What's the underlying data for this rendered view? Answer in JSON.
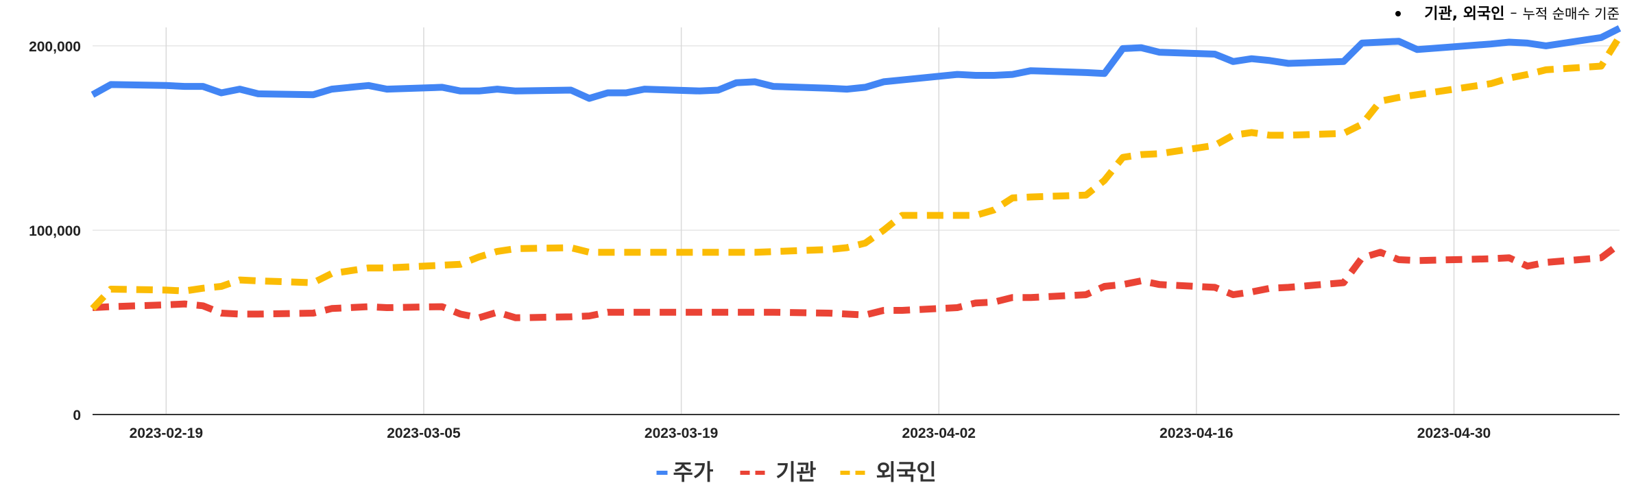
{
  "annotation": {
    "bold_text": "기관, 외국인",
    "dash": "–",
    "detail": "누적 순매수 기준"
  },
  "chart_data": {
    "type": "line",
    "x_ticks": [
      "2023-02-19",
      "2023-03-05",
      "2023-03-19",
      "2023-04-02",
      "2023-04-16",
      "2023-04-30"
    ],
    "x_range": [
      "2023-02-15",
      "2023-05-09"
    ],
    "y_ticks": [
      "0",
      "100,000",
      "200,000"
    ],
    "ylim": [
      0,
      210000
    ],
    "grid": true,
    "legend_position": "bottom",
    "series": [
      {
        "name": "주가",
        "color": "#4285f4",
        "style": "solid",
        "points": [
          [
            "2023-02-15",
            173500
          ],
          [
            "2023-02-16",
            179000
          ],
          [
            "2023-02-19",
            178500
          ],
          [
            "2023-02-20",
            178000
          ],
          [
            "2023-02-21",
            178000
          ],
          [
            "2023-02-22",
            174500
          ],
          [
            "2023-02-23",
            176500
          ],
          [
            "2023-02-24",
            174000
          ],
          [
            "2023-02-27",
            173500
          ],
          [
            "2023-02-28",
            176500
          ],
          [
            "2023-03-02",
            178500
          ],
          [
            "2023-03-03",
            176500
          ],
          [
            "2023-03-06",
            177500
          ],
          [
            "2023-03-07",
            175500
          ],
          [
            "2023-03-08",
            175500
          ],
          [
            "2023-03-09",
            176500
          ],
          [
            "2023-03-10",
            175500
          ],
          [
            "2023-03-13",
            176000
          ],
          [
            "2023-03-14",
            171500
          ],
          [
            "2023-03-15",
            174500
          ],
          [
            "2023-03-16",
            174500
          ],
          [
            "2023-03-17",
            176500
          ],
          [
            "2023-03-20",
            175500
          ],
          [
            "2023-03-21",
            176000
          ],
          [
            "2023-03-22",
            180000
          ],
          [
            "2023-03-23",
            180500
          ],
          [
            "2023-03-24",
            178000
          ],
          [
            "2023-03-27",
            177000
          ],
          [
            "2023-03-28",
            176500
          ],
          [
            "2023-03-29",
            177500
          ],
          [
            "2023-03-30",
            180500
          ],
          [
            "2023-03-31",
            181500
          ],
          [
            "2023-04-03",
            184500
          ],
          [
            "2023-04-04",
            184000
          ],
          [
            "2023-04-05",
            184000
          ],
          [
            "2023-04-06",
            184500
          ],
          [
            "2023-04-07",
            186500
          ],
          [
            "2023-04-10",
            185500
          ],
          [
            "2023-04-11",
            185000
          ],
          [
            "2023-04-12",
            198500
          ],
          [
            "2023-04-13",
            199000
          ],
          [
            "2023-04-14",
            196500
          ],
          [
            "2023-04-17",
            195500
          ],
          [
            "2023-04-18",
            191500
          ],
          [
            "2023-04-19",
            193000
          ],
          [
            "2023-04-20",
            192000
          ],
          [
            "2023-04-21",
            190500
          ],
          [
            "2023-04-24",
            191500
          ],
          [
            "2023-04-25",
            201500
          ],
          [
            "2023-04-26",
            202000
          ],
          [
            "2023-04-27",
            202500
          ],
          [
            "2023-04-28",
            198000
          ],
          [
            "2023-05-02",
            201000
          ],
          [
            "2023-05-03",
            202000
          ],
          [
            "2023-05-04",
            201500
          ],
          [
            "2023-05-05",
            200000
          ],
          [
            "2023-05-08",
            204500
          ],
          [
            "2023-05-09",
            209500
          ]
        ]
      },
      {
        "name": "기관",
        "color": "#ea4335",
        "style": "dashed",
        "points": [
          [
            "2023-02-15",
            58000
          ],
          [
            "2023-02-16",
            58500
          ],
          [
            "2023-02-19",
            59500
          ],
          [
            "2023-02-20",
            60000
          ],
          [
            "2023-02-21",
            59000
          ],
          [
            "2023-02-22",
            55000
          ],
          [
            "2023-02-23",
            54500
          ],
          [
            "2023-02-24",
            54500
          ],
          [
            "2023-02-27",
            55000
          ],
          [
            "2023-02-28",
            57500
          ],
          [
            "2023-03-02",
            58500
          ],
          [
            "2023-03-03",
            58000
          ],
          [
            "2023-03-06",
            58500
          ],
          [
            "2023-03-07",
            54500
          ],
          [
            "2023-03-08",
            52500
          ],
          [
            "2023-03-09",
            55500
          ],
          [
            "2023-03-10",
            52500
          ],
          [
            "2023-03-13",
            53000
          ],
          [
            "2023-03-14",
            53500
          ],
          [
            "2023-03-15",
            55500
          ],
          [
            "2023-03-17",
            55500
          ],
          [
            "2023-03-20",
            55500
          ],
          [
            "2023-03-24",
            55500
          ],
          [
            "2023-03-27",
            55000
          ],
          [
            "2023-03-28",
            54500
          ],
          [
            "2023-03-29",
            54000
          ],
          [
            "2023-03-30",
            56500
          ],
          [
            "2023-03-31",
            56500
          ],
          [
            "2023-04-03",
            58000
          ],
          [
            "2023-04-04",
            60500
          ],
          [
            "2023-04-05",
            61000
          ],
          [
            "2023-04-06",
            63500
          ],
          [
            "2023-04-07",
            63500
          ],
          [
            "2023-04-10",
            65000
          ],
          [
            "2023-04-11",
            69500
          ],
          [
            "2023-04-12",
            70500
          ],
          [
            "2023-04-13",
            72500
          ],
          [
            "2023-04-14",
            70500
          ],
          [
            "2023-04-17",
            69000
          ],
          [
            "2023-04-18",
            65000
          ],
          [
            "2023-04-19",
            66500
          ],
          [
            "2023-04-20",
            68500
          ],
          [
            "2023-04-21",
            69000
          ],
          [
            "2023-04-24",
            71500
          ],
          [
            "2023-04-25",
            85000
          ],
          [
            "2023-04-26",
            88000
          ],
          [
            "2023-04-27",
            84000
          ],
          [
            "2023-04-28",
            83500
          ],
          [
            "2023-05-02",
            84500
          ],
          [
            "2023-05-03",
            85000
          ],
          [
            "2023-05-04",
            80500
          ],
          [
            "2023-05-05",
            82500
          ],
          [
            "2023-05-08",
            85000
          ],
          [
            "2023-05-09",
            92500
          ]
        ]
      },
      {
        "name": "외국인",
        "color": "#fbbc04",
        "style": "dashed",
        "points": [
          [
            "2023-02-15",
            57500
          ],
          [
            "2023-02-16",
            68000
          ],
          [
            "2023-02-19",
            67500
          ],
          [
            "2023-02-20",
            67000
          ],
          [
            "2023-02-21",
            68500
          ],
          [
            "2023-02-22",
            69500
          ],
          [
            "2023-02-23",
            73000
          ],
          [
            "2023-02-24",
            72500
          ],
          [
            "2023-02-27",
            71500
          ],
          [
            "2023-02-28",
            76500
          ],
          [
            "2023-03-02",
            79500
          ],
          [
            "2023-03-03",
            79500
          ],
          [
            "2023-03-06",
            81000
          ],
          [
            "2023-03-07",
            81500
          ],
          [
            "2023-03-08",
            85500
          ],
          [
            "2023-03-09",
            88500
          ],
          [
            "2023-03-10",
            90000
          ],
          [
            "2023-03-13",
            90500
          ],
          [
            "2023-03-14",
            88000
          ],
          [
            "2023-03-15",
            88000
          ],
          [
            "2023-03-20",
            88000
          ],
          [
            "2023-03-23",
            88000
          ],
          [
            "2023-03-27",
            89500
          ],
          [
            "2023-03-28",
            90500
          ],
          [
            "2023-03-29",
            93000
          ],
          [
            "2023-03-30",
            100000
          ],
          [
            "2023-03-31",
            108000
          ],
          [
            "2023-04-03",
            108000
          ],
          [
            "2023-04-04",
            108000
          ],
          [
            "2023-04-05",
            111000
          ],
          [
            "2023-04-06",
            117500
          ],
          [
            "2023-04-07",
            118000
          ],
          [
            "2023-04-10",
            119000
          ],
          [
            "2023-04-11",
            127000
          ],
          [
            "2023-04-12",
            139500
          ],
          [
            "2023-04-13",
            141000
          ],
          [
            "2023-04-14",
            141500
          ],
          [
            "2023-04-17",
            146000
          ],
          [
            "2023-04-18",
            151500
          ],
          [
            "2023-04-19",
            153000
          ],
          [
            "2023-04-20",
            151500
          ],
          [
            "2023-04-21",
            151500
          ],
          [
            "2023-04-24",
            152500
          ],
          [
            "2023-04-25",
            157500
          ],
          [
            "2023-04-26",
            170000
          ],
          [
            "2023-04-27",
            172000
          ],
          [
            "2023-05-01",
            178000
          ],
          [
            "2023-05-02",
            179500
          ],
          [
            "2023-05-03",
            182500
          ],
          [
            "2023-05-04",
            184500
          ],
          [
            "2023-05-05",
            187000
          ],
          [
            "2023-05-08",
            189000
          ],
          [
            "2023-05-09",
            205000
          ]
        ]
      }
    ]
  }
}
